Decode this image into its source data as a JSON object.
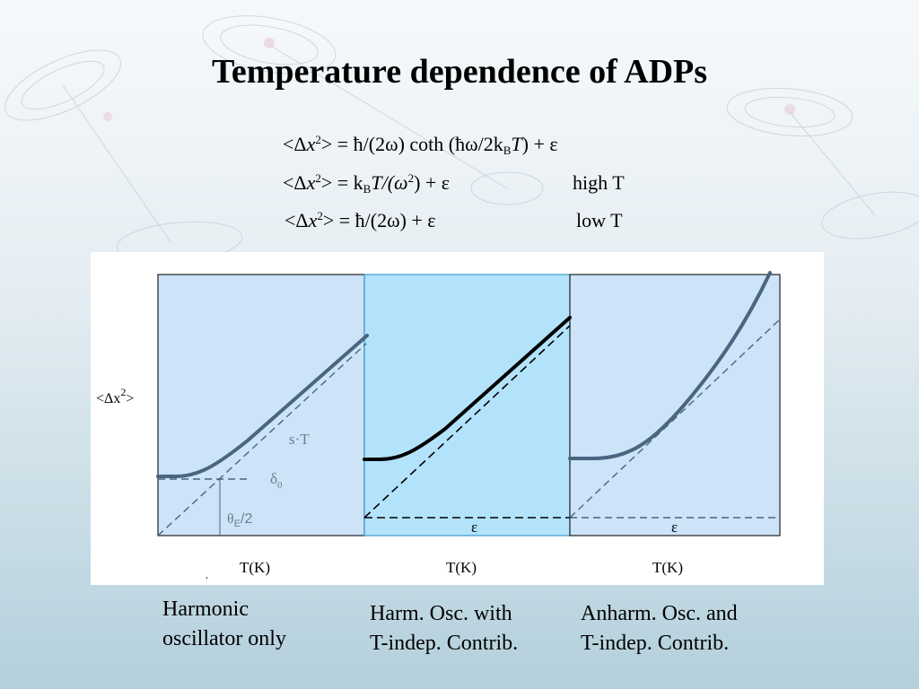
{
  "title": "Temperature dependence of ADPs",
  "equations": {
    "eq1": {
      "rhs": "= ħ/(2ω) coth (ħω/2k",
      "sub": "B",
      "rhs2": "T",
      "rhs3": ") + ε"
    },
    "eq2": {
      "rhs": "= k",
      "sub": "B",
      "rhs2": "T/(ω",
      "sup2": "2",
      "rhs3": ") + ε",
      "label": "high T"
    },
    "eq3": {
      "rhs": "= ħ/(2ω) + ε",
      "label": "low T"
    },
    "lhs_open": "<Δ",
    "lhs_var": "x",
    "lhs_sup": "2",
    "lhs_close": ">"
  },
  "figure": {
    "ylabel": "<Δx",
    "ylabel_sup": "2",
    "ylabel_close": ">",
    "xlabels": [
      "T(K)",
      "T(K)",
      "T(K)"
    ],
    "panel1": {
      "slope_label": "s·T",
      "delta_label": "δ",
      "delta_sub": "0",
      "theta_label": "θ",
      "theta_sub": "E",
      "theta_rest": "/2"
    },
    "panel2": {
      "eps_label": "ε"
    },
    "panel3": {
      "eps_label": "ε"
    },
    "stray_mark": ","
  },
  "captions": [
    {
      "line1": "Harmonic",
      "line2": "oscillator only"
    },
    {
      "line1": "Harm. Osc. with",
      "line2": "T-indep. Contrib."
    },
    {
      "line1": "Anharm. Osc. and",
      "line2": "T-indep. Contrib."
    }
  ],
  "colors": {
    "panel1_bg": "#cce3f8",
    "panel2_bg": "#b3e3fb",
    "panel3_bg": "#cce3f8",
    "curve_blue": "#4a6580",
    "curve_black": "#000000",
    "label_gray": "#6b7f8f"
  }
}
